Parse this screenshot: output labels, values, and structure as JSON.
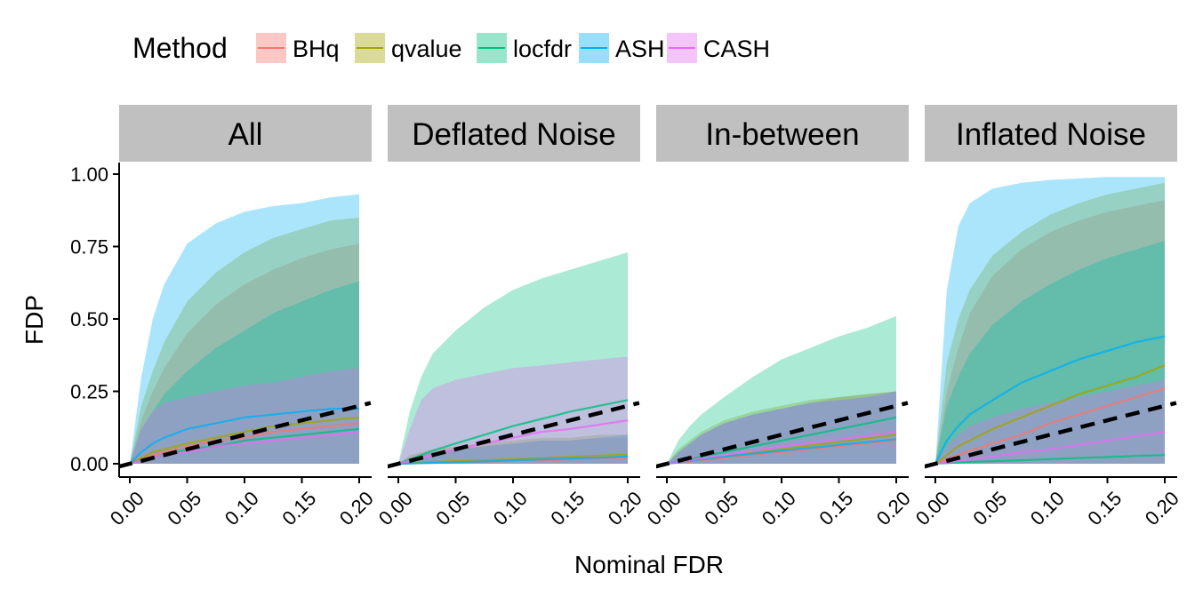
{
  "chart_data": {
    "type": "area",
    "xlabel": "Nominal FDR",
    "ylabel": "FDP",
    "xlim": [
      0,
      0.2
    ],
    "ylim": [
      0,
      1
    ],
    "x_ticks": [
      "0.00",
      "0.05",
      "0.10",
      "0.15",
      "0.20"
    ],
    "y_ticks": [
      "0.00",
      "0.25",
      "0.50",
      "0.75",
      "1.00"
    ],
    "legend": {
      "title": "Method",
      "position": "top",
      "entries": [
        {
          "name": "BHq",
          "color": "#F8766D"
        },
        {
          "name": "qvalue",
          "color": "#A3A500"
        },
        {
          "name": "locfdr",
          "color": "#00BF7D"
        },
        {
          "name": "ASH",
          "color": "#00B0F6"
        },
        {
          "name": "CASH",
          "color": "#E76BF3"
        }
      ]
    },
    "reference_line": {
      "label": "y = x",
      "style": "dashed",
      "color": "#000000"
    },
    "x": [
      0,
      0.01,
      0.02,
      0.03,
      0.05,
      0.075,
      0.1,
      0.125,
      0.15,
      0.175,
      0.2
    ],
    "panels": [
      {
        "title": "All",
        "series": [
          {
            "name": "BHq",
            "lower": [
              0,
              0,
              0,
              0,
              0,
              0,
              0,
              0,
              0,
              0,
              0
            ],
            "upper": [
              0,
              0.15,
              0.25,
              0.33,
              0.45,
              0.55,
              0.62,
              0.67,
              0.71,
              0.74,
              0.76
            ],
            "mean": [
              0,
              0.02,
              0.03,
              0.04,
              0.06,
              0.08,
              0.09,
              0.11,
              0.12,
              0.13,
              0.14
            ]
          },
          {
            "name": "qvalue",
            "lower": [
              0,
              0,
              0,
              0,
              0,
              0,
              0,
              0,
              0,
              0,
              0
            ],
            "upper": [
              0,
              0.2,
              0.32,
              0.42,
              0.56,
              0.66,
              0.73,
              0.78,
              0.81,
              0.84,
              0.85
            ],
            "mean": [
              0,
              0.02,
              0.04,
              0.05,
              0.07,
              0.09,
              0.11,
              0.13,
              0.14,
              0.15,
              0.16
            ]
          },
          {
            "name": "locfdr",
            "lower": [
              0,
              0,
              0,
              0,
              0,
              0,
              0,
              0,
              0,
              0,
              0
            ],
            "upper": [
              0,
              0.12,
              0.18,
              0.24,
              0.32,
              0.4,
              0.46,
              0.52,
              0.56,
              0.6,
              0.63
            ],
            "mean": [
              0,
              0.01,
              0.02,
              0.03,
              0.05,
              0.06,
              0.08,
              0.09,
              0.1,
              0.11,
              0.12
            ]
          },
          {
            "name": "ASH",
            "lower": [
              0,
              0,
              0,
              0,
              0,
              0,
              0,
              0,
              0,
              0,
              0
            ],
            "upper": [
              0,
              0.3,
              0.5,
              0.62,
              0.76,
              0.83,
              0.87,
              0.89,
              0.9,
              0.92,
              0.93
            ],
            "mean": [
              0,
              0.04,
              0.07,
              0.09,
              0.12,
              0.14,
              0.16,
              0.17,
              0.18,
              0.19,
              0.19
            ]
          },
          {
            "name": "CASH",
            "lower": [
              0,
              0,
              0,
              0,
              0,
              0,
              0,
              0,
              0,
              0,
              0
            ],
            "upper": [
              0,
              0.12,
              0.18,
              0.21,
              0.23,
              0.25,
              0.27,
              0.28,
              0.3,
              0.32,
              0.33
            ],
            "mean": [
              0,
              0.01,
              0.02,
              0.03,
              0.04,
              0.06,
              0.07,
              0.08,
              0.09,
              0.1,
              0.11
            ]
          }
        ]
      },
      {
        "title": "Deflated Noise",
        "series": [
          {
            "name": "BHq",
            "lower": [
              0,
              0,
              0,
              0,
              0,
              0,
              0,
              0,
              0,
              0,
              0
            ],
            "upper": [
              0,
              0.02,
              0.03,
              0.04,
              0.05,
              0.06,
              0.07,
              0.08,
              0.08,
              0.09,
              0.09
            ],
            "mean": [
              0,
              0.001,
              0.002,
              0.003,
              0.005,
              0.007,
              0.01,
              0.012,
              0.015,
              0.018,
              0.02
            ]
          },
          {
            "name": "qvalue",
            "lower": [
              0,
              0,
              0,
              0,
              0,
              0,
              0,
              0,
              0,
              0,
              0
            ],
            "upper": [
              0,
              0.03,
              0.04,
              0.05,
              0.06,
              0.07,
              0.08,
              0.09,
              0.09,
              0.1,
              0.1
            ],
            "mean": [
              0,
              0.002,
              0.004,
              0.006,
              0.009,
              0.012,
              0.016,
              0.02,
              0.024,
              0.028,
              0.032
            ]
          },
          {
            "name": "locfdr",
            "lower": [
              0,
              0,
              0,
              0,
              0,
              0,
              0,
              0,
              0,
              0,
              0
            ],
            "upper": [
              0,
              0.18,
              0.3,
              0.38,
              0.46,
              0.54,
              0.6,
              0.64,
              0.67,
              0.7,
              0.73
            ],
            "mean": [
              0,
              0.015,
              0.03,
              0.045,
              0.07,
              0.1,
              0.13,
              0.155,
              0.18,
              0.2,
              0.22
            ]
          },
          {
            "name": "ASH",
            "lower": [
              0,
              0,
              0,
              0,
              0,
              0,
              0,
              0,
              0,
              0,
              0
            ],
            "upper": [
              0,
              0.02,
              0.03,
              0.04,
              0.05,
              0.06,
              0.07,
              0.08,
              0.08,
              0.09,
              0.1
            ],
            "mean": [
              0,
              0.001,
              0.002,
              0.003,
              0.005,
              0.008,
              0.012,
              0.015,
              0.018,
              0.021,
              0.025
            ]
          },
          {
            "name": "CASH",
            "lower": [
              0,
              0,
              0,
              0,
              0,
              0,
              0,
              0,
              0,
              0,
              0
            ],
            "upper": [
              0,
              0.12,
              0.22,
              0.26,
              0.29,
              0.31,
              0.33,
              0.34,
              0.35,
              0.36,
              0.37
            ],
            "mean": [
              0,
              0.01,
              0.02,
              0.03,
              0.05,
              0.07,
              0.09,
              0.11,
              0.12,
              0.135,
              0.15
            ]
          }
        ]
      },
      {
        "title": "In-between",
        "series": [
          {
            "name": "BHq",
            "lower": [
              0,
              0,
              0,
              0,
              0,
              0,
              0,
              0,
              0,
              0,
              0
            ],
            "upper": [
              0,
              0.04,
              0.07,
              0.1,
              0.14,
              0.17,
              0.19,
              0.21,
              0.23,
              0.24,
              0.25
            ],
            "mean": [
              0,
              0.004,
              0.008,
              0.012,
              0.02,
              0.03,
              0.04,
              0.05,
              0.06,
              0.07,
              0.08
            ]
          },
          {
            "name": "qvalue",
            "lower": [
              0,
              0,
              0,
              0,
              0,
              0,
              0,
              0,
              0,
              0,
              0
            ],
            "upper": [
              0,
              0.05,
              0.08,
              0.11,
              0.15,
              0.18,
              0.2,
              0.22,
              0.23,
              0.24,
              0.25
            ],
            "mean": [
              0,
              0.005,
              0.01,
              0.015,
              0.025,
              0.037,
              0.05,
              0.063,
              0.075,
              0.087,
              0.1
            ]
          },
          {
            "name": "locfdr",
            "lower": [
              0,
              0,
              0,
              0,
              0,
              0,
              0,
              0,
              0,
              0,
              0
            ],
            "upper": [
              0,
              0.08,
              0.13,
              0.17,
              0.23,
              0.3,
              0.36,
              0.4,
              0.44,
              0.47,
              0.51
            ],
            "mean": [
              0,
              0.008,
              0.015,
              0.025,
              0.04,
              0.06,
              0.08,
              0.1,
              0.12,
              0.14,
              0.16
            ]
          },
          {
            "name": "ASH",
            "lower": [
              0,
              0,
              0,
              0,
              0,
              0,
              0,
              0,
              0,
              0,
              0
            ],
            "upper": [
              0,
              0.04,
              0.07,
              0.1,
              0.14,
              0.17,
              0.19,
              0.21,
              0.22,
              0.23,
              0.25
            ],
            "mean": [
              0,
              0.005,
              0.01,
              0.015,
              0.025,
              0.035,
              0.045,
              0.055,
              0.065,
              0.075,
              0.085
            ]
          },
          {
            "name": "CASH",
            "lower": [
              0,
              0,
              0,
              0,
              0,
              0,
              0,
              0,
              0,
              0,
              0
            ],
            "upper": [
              0,
              0.04,
              0.07,
              0.1,
              0.14,
              0.17,
              0.19,
              0.21,
              0.22,
              0.23,
              0.25
            ],
            "mean": [
              0,
              0.006,
              0.012,
              0.018,
              0.03,
              0.045,
              0.06,
              0.072,
              0.085,
              0.097,
              0.11
            ]
          }
        ]
      },
      {
        "title": "Inflated Noise",
        "series": [
          {
            "name": "BHq",
            "lower": [
              0,
              0,
              0,
              0,
              0,
              0,
              0,
              0,
              0,
              0,
              0
            ],
            "upper": [
              0,
              0.25,
              0.4,
              0.52,
              0.65,
              0.74,
              0.8,
              0.84,
              0.87,
              0.89,
              0.91
            ],
            "mean": [
              0,
              0.015,
              0.03,
              0.045,
              0.07,
              0.1,
              0.14,
              0.17,
              0.2,
              0.23,
              0.26
            ]
          },
          {
            "name": "qvalue",
            "lower": [
              0,
              0,
              0,
              0,
              0,
              0,
              0,
              0,
              0,
              0,
              0
            ],
            "upper": [
              0,
              0.35,
              0.5,
              0.6,
              0.72,
              0.8,
              0.86,
              0.9,
              0.93,
              0.95,
              0.97
            ],
            "mean": [
              0,
              0.03,
              0.06,
              0.08,
              0.12,
              0.16,
              0.2,
              0.24,
              0.27,
              0.3,
              0.34
            ]
          },
          {
            "name": "locfdr",
            "lower": [
              0,
              0,
              0,
              0,
              0,
              0,
              0,
              0,
              0,
              0,
              0
            ],
            "upper": [
              0,
              0.2,
              0.3,
              0.38,
              0.48,
              0.56,
              0.62,
              0.67,
              0.71,
              0.74,
              0.77
            ],
            "mean": [
              0,
              0.002,
              0.004,
              0.006,
              0.009,
              0.012,
              0.016,
              0.02,
              0.023,
              0.027,
              0.03
            ]
          },
          {
            "name": "ASH",
            "lower": [
              0,
              0,
              0,
              0,
              0,
              0,
              0,
              0,
              0,
              0,
              0
            ],
            "upper": [
              0,
              0.6,
              0.82,
              0.9,
              0.95,
              0.97,
              0.98,
              0.985,
              0.99,
              0.99,
              0.99
            ],
            "mean": [
              0,
              0.08,
              0.13,
              0.17,
              0.22,
              0.28,
              0.32,
              0.36,
              0.39,
              0.42,
              0.44
            ]
          },
          {
            "name": "CASH",
            "lower": [
              0,
              0,
              0,
              0,
              0,
              0,
              0,
              0,
              0,
              0,
              0
            ],
            "upper": [
              0,
              0.06,
              0.1,
              0.13,
              0.16,
              0.19,
              0.21,
              0.23,
              0.25,
              0.27,
              0.29
            ],
            "mean": [
              0,
              0.005,
              0.01,
              0.015,
              0.025,
              0.04,
              0.05,
              0.065,
              0.08,
              0.095,
              0.11
            ]
          }
        ]
      }
    ]
  }
}
